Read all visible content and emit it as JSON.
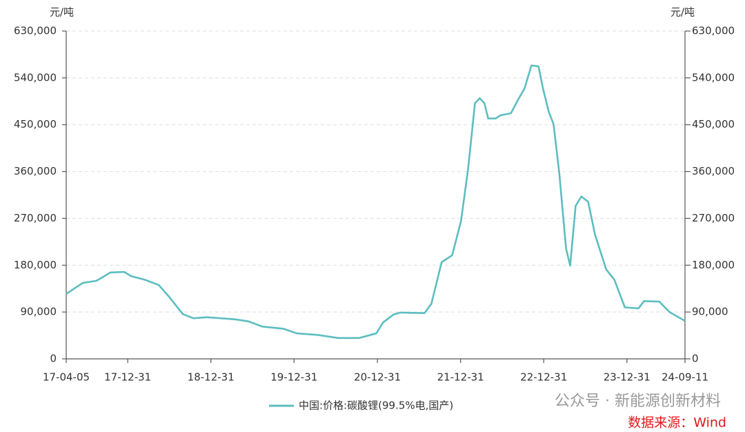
{
  "chart_data": {
    "type": "line",
    "y_unit_left": "元/吨",
    "y_unit_right": "元/吨",
    "ylim": [
      0,
      630000
    ],
    "yticks": [
      0,
      {
        "value": 90000,
        "label": "90,000"
      },
      {
        "value": 180000,
        "label": "180,000"
      },
      {
        "value": 270000,
        "label": "270,000"
      },
      {
        "value": 360000,
        "label": "360,000"
      },
      {
        "value": 450000,
        "label": "450,000"
      },
      {
        "value": 540000,
        "label": "540,000"
      },
      {
        "value": 630000,
        "label": "630,000"
      }
    ],
    "xlim": [
      "2017-04-05",
      "2024-09-11"
    ],
    "xticks": [
      {
        "value": "2017-04-05",
        "label": "17-04-05"
      },
      {
        "value": "2017-12-31",
        "label": "17-12-31"
      },
      {
        "value": "2018-12-31",
        "label": "18-12-31"
      },
      {
        "value": "2019-12-31",
        "label": "19-12-31"
      },
      {
        "value": "2020-12-31",
        "label": "20-12-31"
      },
      {
        "value": "2021-12-31",
        "label": "21-12-31"
      },
      {
        "value": "2022-12-31",
        "label": "22-12-31"
      },
      {
        "value": "2023-12-31",
        "label": "23-12-31"
      },
      {
        "value": "2024-09-11",
        "label": "24-09-11"
      }
    ],
    "grid": true,
    "x": [
      "2017-04-05",
      "2017-05-17",
      "2017-06-17",
      "2017-08-16",
      "2017-10-16",
      "2017-12-16",
      "2018-01-15",
      "2018-03-16",
      "2018-05-16",
      "2018-07-01",
      "2018-08-30",
      "2018-10-15",
      "2018-12-14",
      "2019-04-14",
      "2019-06-14",
      "2019-08-14",
      "2019-11-13",
      "2020-01-12",
      "2020-04-12",
      "2020-07-12",
      "2020-10-11",
      "2020-12-26",
      "2021-01-25",
      "2021-03-11",
      "2021-04-11",
      "2021-07-26",
      "2021-08-25",
      "2021-10-09",
      "2021-11-24",
      "2022-01-02",
      "2022-02-02",
      "2022-03-04",
      "2022-03-25",
      "2022-04-15",
      "2022-05-01",
      "2022-06-03",
      "2022-06-24",
      "2022-08-09",
      "2022-09-08",
      "2022-10-08",
      "2022-11-07",
      "2022-12-08",
      "2022-12-29",
      "2023-01-22",
      "2023-02-12",
      "2023-03-09",
      "2023-04-08",
      "2023-04-26",
      "2023-05-20",
      "2023-06-14",
      "2023-07-14",
      "2023-08-13",
      "2023-10-01",
      "2023-11-06",
      "2023-12-22",
      "2024-02-20",
      "2024-03-15",
      "2024-05-21",
      "2024-07-05",
      "2024-09-11"
    ],
    "series": [
      {
        "name": "中国:价格:碳酸锂(99.5%电,国产)",
        "color": "#5cbdbf",
        "values": [
          124700,
          137000,
          146000,
          150000,
          166000,
          167000,
          159000,
          152000,
          142000,
          119000,
          86000,
          78000,
          80000,
          76000,
          72000,
          62000,
          58000,
          49000,
          46000,
          40000,
          40000,
          49000,
          70000,
          85000,
          89000,
          88000,
          106000,
          186000,
          199000,
          265000,
          365000,
          491000,
          501000,
          491000,
          462000,
          462000,
          468000,
          472000,
          497000,
          520000,
          564000,
          562000,
          517000,
          475000,
          451000,
          358000,
          212000,
          179000,
          294000,
          312000,
          302000,
          239000,
          172000,
          152000,
          99000,
          97000,
          111000,
          110000,
          90000,
          73000
        ]
      }
    ],
    "watermark": "公众号 · 新能源创新材料",
    "source": "数据来源：Wind"
  }
}
